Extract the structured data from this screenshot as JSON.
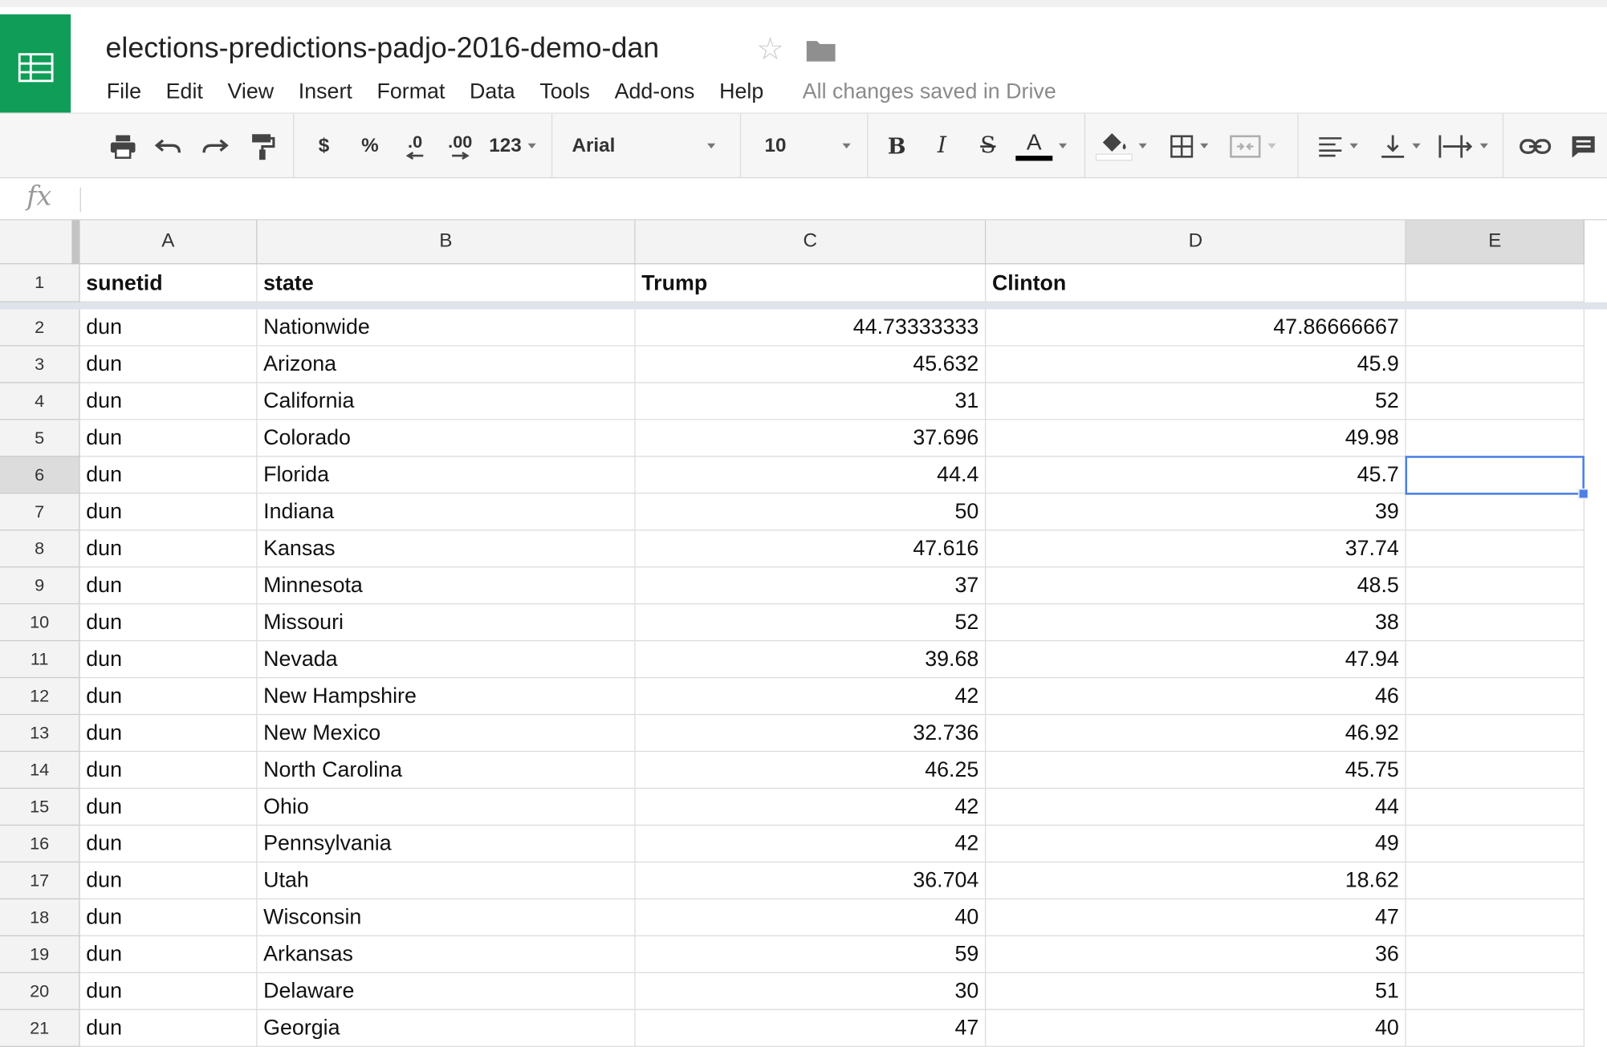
{
  "document": {
    "title": "elections-predictions-padjo-2016-demo-dan",
    "save_status": "All changes saved in Drive"
  },
  "menu": [
    "File",
    "Edit",
    "View",
    "Insert",
    "Format",
    "Data",
    "Tools",
    "Add-ons",
    "Help"
  ],
  "toolbar": {
    "currency_label": "$",
    "percent_label": "%",
    "decrease_decimal_label": ".0",
    "increase_decimal_label": ".00",
    "more_formats_label": "123",
    "font_family": "Arial",
    "font_size": "10",
    "bold_label": "B",
    "italic_label": "I",
    "strike_label": "S",
    "text_color_label": "A"
  },
  "colors": {
    "brand": "#0f9d58",
    "selection": "#4d7fe6"
  },
  "grid": {
    "columns": [
      "A",
      "B",
      "C",
      "D",
      "E"
    ],
    "selected_column": "E",
    "selected_row": 6,
    "active_cell": "E6",
    "rows": [
      {
        "n": "1",
        "cells": [
          "sunetid",
          "state",
          "Trump",
          "Clinton",
          ""
        ]
      },
      {
        "n": "2",
        "cells": [
          "dun",
          "Nationwide",
          "44.73333333",
          "47.86666667",
          ""
        ]
      },
      {
        "n": "3",
        "cells": [
          "dun",
          "Arizona",
          "45.632",
          "45.9",
          ""
        ]
      },
      {
        "n": "4",
        "cells": [
          "dun",
          "California",
          "31",
          "52",
          ""
        ]
      },
      {
        "n": "5",
        "cells": [
          "dun",
          "Colorado",
          "37.696",
          "49.98",
          ""
        ]
      },
      {
        "n": "6",
        "cells": [
          "dun",
          "Florida",
          "44.4",
          "45.7",
          ""
        ]
      },
      {
        "n": "7",
        "cells": [
          "dun",
          "Indiana",
          "50",
          "39",
          ""
        ]
      },
      {
        "n": "8",
        "cells": [
          "dun",
          "Kansas",
          "47.616",
          "37.74",
          ""
        ]
      },
      {
        "n": "9",
        "cells": [
          "dun",
          "Minnesota",
          "37",
          "48.5",
          ""
        ]
      },
      {
        "n": "10",
        "cells": [
          "dun",
          "Missouri",
          "52",
          "38",
          ""
        ]
      },
      {
        "n": "11",
        "cells": [
          "dun",
          "Nevada",
          "39.68",
          "47.94",
          ""
        ]
      },
      {
        "n": "12",
        "cells": [
          "dun",
          "New Hampshire",
          "42",
          "46",
          ""
        ]
      },
      {
        "n": "13",
        "cells": [
          "dun",
          "New Mexico",
          "32.736",
          "46.92",
          ""
        ]
      },
      {
        "n": "14",
        "cells": [
          "dun",
          "North Carolina",
          "46.25",
          "45.75",
          ""
        ]
      },
      {
        "n": "15",
        "cells": [
          "dun",
          "Ohio",
          "42",
          "44",
          ""
        ]
      },
      {
        "n": "16",
        "cells": [
          "dun",
          "Pennsylvania",
          "42",
          "49",
          ""
        ]
      },
      {
        "n": "17",
        "cells": [
          "dun",
          "Utah",
          "36.704",
          "18.62",
          ""
        ]
      },
      {
        "n": "18",
        "cells": [
          "dun",
          "Wisconsin",
          "40",
          "47",
          ""
        ]
      },
      {
        "n": "19",
        "cells": [
          "dun",
          "Arkansas",
          "59",
          "36",
          ""
        ]
      },
      {
        "n": "20",
        "cells": [
          "dun",
          "Delaware",
          "30",
          "51",
          ""
        ]
      },
      {
        "n": "21",
        "cells": [
          "dun",
          "Georgia",
          "47",
          "40",
          ""
        ]
      }
    ]
  }
}
